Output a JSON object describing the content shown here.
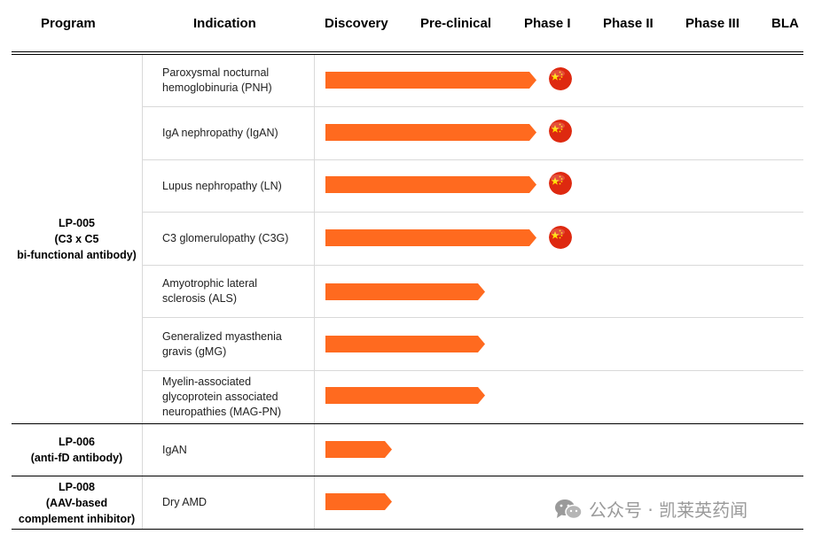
{
  "columns": {
    "program": "Program",
    "indication": "Indication",
    "stages": [
      "Discovery",
      "Pre-clinical",
      "Phase I",
      "Phase II",
      "Phase III",
      "BLA"
    ]
  },
  "programs": [
    {
      "label": "LP-005\n(C3 x C5\nbi-functional antibody)"
    },
    {
      "label": "LP-006\n(anti-fD antibody)"
    },
    {
      "label": "LP-008\n(AAV-based\ncomplement inhibitor)"
    }
  ],
  "rows": [
    {
      "program": 0,
      "indication": "Paroxysmal nocturnal\nhemoglobinuria (PNH)",
      "stage_reached": "Phase I",
      "progress": 2.7,
      "china_flag": true
    },
    {
      "program": 0,
      "indication": "IgA nephropathy (IgAN)",
      "stage_reached": "Phase I",
      "progress": 2.7,
      "china_flag": true
    },
    {
      "program": 0,
      "indication": "Lupus nephropathy (LN)",
      "stage_reached": "Phase I",
      "progress": 2.7,
      "china_flag": true
    },
    {
      "program": 0,
      "indication": "C3 glomerulopathy (C3G)",
      "stage_reached": "Phase I",
      "progress": 2.7,
      "china_flag": true
    },
    {
      "program": 0,
      "indication": "Amyotrophic lateral\nsclerosis (ALS)",
      "stage_reached": "Pre-clinical",
      "progress": 2.05,
      "china_flag": false
    },
    {
      "program": 0,
      "indication": "Generalized myasthenia\ngravis (gMG)",
      "stage_reached": "Pre-clinical",
      "progress": 2.05,
      "china_flag": false
    },
    {
      "program": 0,
      "indication": "Myelin-associated\nglycoprotein associated\nneuropathies (MAG-PN)",
      "stage_reached": "Pre-clinical",
      "progress": 2.05,
      "china_flag": false
    },
    {
      "program": 1,
      "indication": "IgAN",
      "stage_reached": "Discovery",
      "progress": 0.85,
      "china_flag": false
    },
    {
      "program": 2,
      "indication": "Dry AMD",
      "stage_reached": "Discovery",
      "progress": 0.85,
      "china_flag": false
    }
  ],
  "colors": {
    "bar": "#ff6a1f",
    "flag_red": "#de2910",
    "flag_star": "#ffde00",
    "watermark": "#9a9a9a"
  },
  "watermark": {
    "text": "公众号 · 凯莱英药闻",
    "icon": "wechat-icon"
  }
}
